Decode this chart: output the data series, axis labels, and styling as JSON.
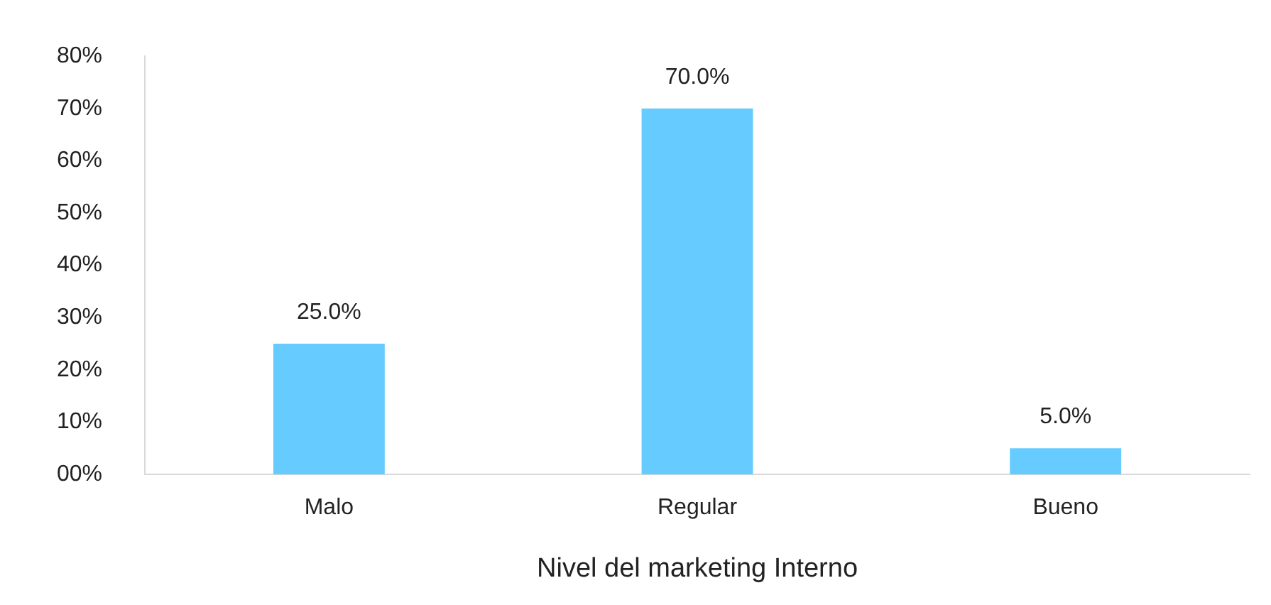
{
  "chart_data": {
    "type": "bar",
    "xlabel": "Nivel del marketing Interno",
    "categories": [
      "Malo",
      "Regular",
      "Bueno"
    ],
    "values": [
      25,
      70,
      5
    ],
    "value_labels": [
      "25.0%",
      "70.0%",
      "5.0%"
    ],
    "color": "#66ccff",
    "ylim": [
      0,
      80
    ],
    "yticks": [
      {
        "value": 0,
        "label": "00%"
      },
      {
        "value": 10,
        "label": "10%"
      },
      {
        "value": 20,
        "label": "20%"
      },
      {
        "value": 30,
        "label": "30%"
      },
      {
        "value": 40,
        "label": "40%"
      },
      {
        "value": 50,
        "label": "50%"
      },
      {
        "value": 60,
        "label": "60%"
      },
      {
        "value": 70,
        "label": "70%"
      },
      {
        "value": 80,
        "label": "80%"
      }
    ],
    "grid": false,
    "legend": false
  }
}
